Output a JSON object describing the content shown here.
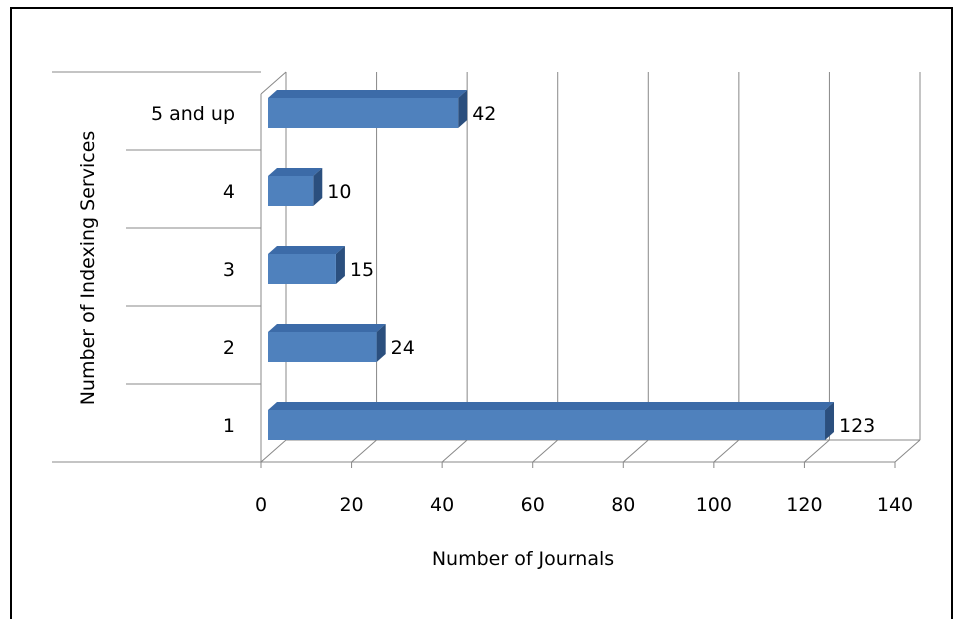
{
  "chart_data": {
    "type": "bar",
    "orientation": "horizontal",
    "style": "3d-clustered-bar",
    "categories": [
      "1",
      "2",
      "3",
      "4",
      "5 and up"
    ],
    "values": [
      123,
      24,
      15,
      10,
      42
    ],
    "data_labels": [
      "123",
      "24",
      "15",
      "10",
      "42"
    ],
    "xlabel": "Number of Journals",
    "ylabel": "Number of Indexing Services",
    "xlim": [
      0,
      140
    ],
    "xticks": [
      "0",
      "20",
      "40",
      "60",
      "80",
      "100",
      "120",
      "140"
    ],
    "grid": "vertical",
    "legend": "none",
    "bar_color": "#4F81BD",
    "bar_top_color": "#3C6BA8",
    "bar_side_color": "#2B4F7E"
  }
}
